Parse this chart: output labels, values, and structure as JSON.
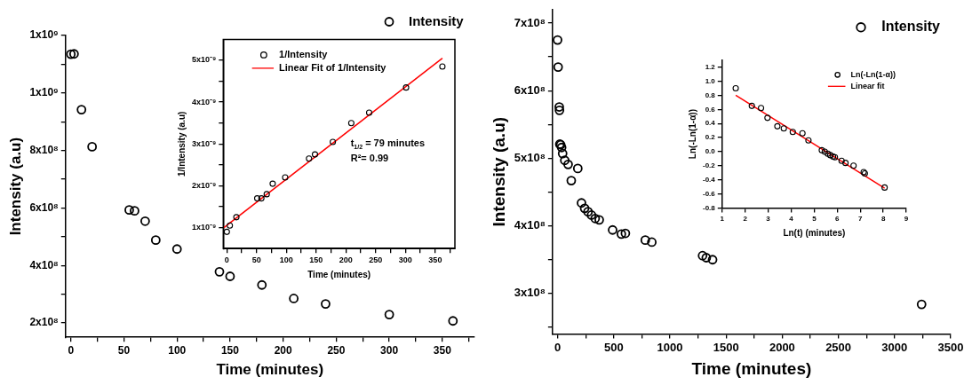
{
  "chart_data": [
    {
      "type": "scatter",
      "xlabel": "Time (minutes)",
      "ylabel": "Intensity (a.u)",
      "xlim": [
        -5,
        380
      ],
      "ylim": [
        150000000,
        1200000000
      ],
      "xticks": [
        0,
        {
          "value": 25,
          "label": null
        },
        50,
        {
          "value": 75,
          "label": null
        },
        100,
        {
          "value": 125,
          "label": null
        },
        150,
        {
          "value": 175,
          "label": null
        },
        200,
        {
          "value": 225,
          "label": null
        },
        250,
        {
          "value": 275,
          "label": null
        },
        300,
        {
          "value": 325,
          "label": null
        },
        350,
        {
          "value": 375,
          "label": null
        }
      ],
      "yticks": [
        {
          "value": 200000000,
          "label": "2x10⁸"
        },
        {
          "value": 300000000,
          "label": null
        },
        {
          "value": 400000000,
          "label": "4x10⁸"
        },
        {
          "value": 500000000,
          "label": null
        },
        {
          "value": 600000000,
          "label": "6x10⁸"
        },
        {
          "value": 700000000,
          "label": null
        },
        {
          "value": 800000000,
          "label": "8x10⁸"
        },
        {
          "value": 900000000,
          "label": null
        },
        {
          "value": 1000000000,
          "label": "1x10⁹"
        },
        {
          "value": 1100000000,
          "label": null
        },
        {
          "value": 1200000000,
          "label": "1x10⁹"
        }
      ],
      "grid": false,
      "legend": "top right",
      "marker": "circle",
      "series": [
        {
          "name": "Intensity",
          "color": "#000000",
          "x": [
            0,
            3,
            10,
            20,
            55,
            60,
            70,
            80,
            100,
            140,
            150,
            180,
            210,
            240,
            300,
            360
          ],
          "values": [
            1135000000,
            1136000000,
            942000000,
            813000000,
            593000000,
            590000000,
            554000000,
            488000000,
            457000000,
            378000000,
            362000000,
            332000000,
            285000000,
            266000000,
            229000000,
            207000000
          ]
        }
      ]
    },
    {
      "type": "scatter",
      "xlabel": "Time (minutes)",
      "ylabel": "1/Intensity (a.u)",
      "xlim": [
        -6,
        383
      ],
      "ylim": [
        5e-10,
        5.5e-09
      ],
      "xticks": [
        0,
        {
          "value": 25,
          "label": null
        },
        50,
        {
          "value": 75,
          "label": null
        },
        100,
        {
          "value": 125,
          "label": null
        },
        150,
        {
          "value": 175,
          "label": null
        },
        200,
        {
          "value": 225,
          "label": null
        },
        250,
        {
          "value": 275,
          "label": null
        },
        300,
        {
          "value": 325,
          "label": null
        },
        350,
        {
          "value": 375,
          "label": null
        }
      ],
      "yticks": [
        {
          "value": 1e-09,
          "label": "1x10⁻⁹"
        },
        {
          "value": 1.5e-09,
          "label": null
        },
        {
          "value": 2e-09,
          "label": "2x10⁻⁹"
        },
        {
          "value": 2.5e-09,
          "label": null
        },
        {
          "value": 3e-09,
          "label": "3x10⁻⁹"
        },
        {
          "value": 3.5e-09,
          "label": null
        },
        {
          "value": 4e-09,
          "label": "4x10⁻⁹"
        },
        {
          "value": 4.5e-09,
          "label": null
        },
        {
          "value": 5e-09,
          "label": "5x10⁻⁹"
        }
      ],
      "grid": false,
      "legend": "top",
      "marker": "circle",
      "annotations": [
        "t$_{1/2}$ = 79 minutes",
        "R²= 0.99"
      ],
      "series": [
        {
          "name": "1/Intensity",
          "color": "#000000",
          "x": [
            0,
            5,
            16,
            51,
            58,
            67,
            77,
            98,
            138,
            148,
            178,
            209,
            239,
            301,
            362
          ],
          "values": [
            9e-10,
            1.05e-09,
            1.25e-09,
            1.7e-09,
            1.7e-09,
            1.8e-09,
            2.05e-09,
            2.2e-09,
            2.65e-09,
            2.75e-09,
            3.05e-09,
            3.5e-09,
            3.75e-09,
            4.35e-09,
            4.85e-09
          ]
        },
        {
          "name": "Linear Fit of 1/Intensity",
          "type": "line",
          "color": "#ff0000",
          "marker": "none",
          "x": [
            -5,
            362
          ],
          "values": [
            1e-09,
            5.05e-09
          ]
        }
      ]
    },
    {
      "type": "scatter",
      "xlabel": "Time (minutes)",
      "ylabel": "Intensity (a.u)",
      "xlim": [
        -45,
        3500
      ],
      "ylim": [
        240000000,
        720000000
      ],
      "xticks": [
        0,
        {
          "value": 250,
          "label": null
        },
        500,
        {
          "value": 750,
          "label": null
        },
        1000,
        {
          "value": 1250,
          "label": null
        },
        1500,
        {
          "value": 1750,
          "label": null
        },
        2000,
        {
          "value": 2250,
          "label": null
        },
        2500,
        {
          "value": 2750,
          "label": null
        },
        3000,
        {
          "value": 3250,
          "label": null
        },
        3500
      ],
      "yticks": [
        {
          "value": 250000000,
          "label": null
        },
        {
          "value": 300000000,
          "label": "3x10⁸"
        },
        {
          "value": 350000000,
          "label": null
        },
        {
          "value": 400000000,
          "label": "4x10⁸"
        },
        {
          "value": 450000000,
          "label": null
        },
        {
          "value": 500000000,
          "label": "5x10⁸"
        },
        {
          "value": 550000000,
          "label": null
        },
        {
          "value": 600000000,
          "label": "6x10⁸"
        },
        {
          "value": 650000000,
          "label": null
        },
        {
          "value": 700000000,
          "label": "7x10⁸"
        }
      ],
      "grid": false,
      "legend": "top right",
      "marker": "circle",
      "series": [
        {
          "name": "Intensity",
          "color": "#000000",
          "x": [
            0,
            5,
            15,
            17,
            20,
            28,
            36,
            45,
            64,
            94,
            180,
            122,
            213,
            241,
            271,
            302,
            335,
            371,
            490,
            568,
            604,
            781,
            839,
            1291,
            1324,
            1380,
            3241
          ],
          "values": [
            675000000,
            635000000,
            576000000,
            571000000,
            521000000,
            520000000,
            516000000,
            507000000,
            497000000,
            491000000,
            485000000,
            467000000,
            434000000,
            426000000,
            421000000,
            416000000,
            411000000,
            409000000,
            394000000,
            388000000,
            389000000,
            379000000,
            376000000,
            356000000,
            353000000,
            350000000,
            284000000
          ]
        }
      ]
    },
    {
      "type": "scatter",
      "xlabel": "Ln(t) (minutes)",
      "ylabel": "Ln(-Ln(1-α))",
      "xlim": [
        1,
        9
      ],
      "ylim": [
        -0.8,
        1.3
      ],
      "xticks": [
        1,
        2,
        3,
        4,
        5,
        6,
        7,
        8,
        9
      ],
      "yticks": [
        -0.8,
        -0.6,
        -0.4,
        -0.2,
        {
          "value": 0,
          "label": "0.0"
        },
        0.2,
        0.4,
        0.6,
        0.8,
        {
          "value": 1,
          "label": "1.0"
        },
        1.2
      ],
      "grid": false,
      "legend": "top right",
      "marker": "circle",
      "series": [
        {
          "name": "Ln(-Ln(1-α))",
          "color": "#000000",
          "x": [
            1.59,
            2.29,
            2.69,
            2.97,
            3.4,
            3.68,
            4.07,
            4.49,
            4.75,
            5.33,
            5.46,
            5.59,
            5.7,
            5.82,
            5.9,
            6.19,
            6.36,
            6.71,
            7.15,
            7.2,
            8.06
          ],
          "values": [
            0.9,
            0.65,
            0.62,
            0.48,
            0.36,
            0.33,
            0.28,
            0.26,
            0.16,
            0.02,
            0,
            -0.03,
            -0.05,
            -0.07,
            -0.08,
            -0.13,
            -0.16,
            -0.2,
            -0.29,
            -0.31,
            -0.51
          ]
        },
        {
          "name": "Linear fit",
          "type": "line",
          "color": "#ff0000",
          "marker": "none",
          "x": [
            1.59,
            8.06
          ],
          "values": [
            0.8,
            -0.52
          ]
        }
      ]
    }
  ]
}
